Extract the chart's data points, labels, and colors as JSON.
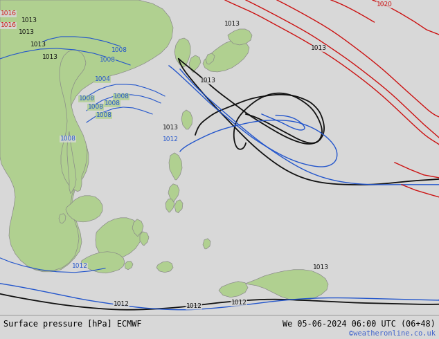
{
  "title_left": "Surface pressure [hPa] ECMWF",
  "title_right": "We 05-06-2024 06:00 UTC (06+48)",
  "credit": "©weatheronline.co.uk",
  "bg_color": "#d8d8d8",
  "land_color": "#b0d090",
  "ocean_color": "#d8d8d8",
  "coast_color": "#888888",
  "fig_width": 6.34,
  "fig_height": 4.9,
  "dpi": 100,
  "credit_color": "#4466cc",
  "black_c": "#111111",
  "blue_c": "#2255cc",
  "red_c": "#cc1111"
}
